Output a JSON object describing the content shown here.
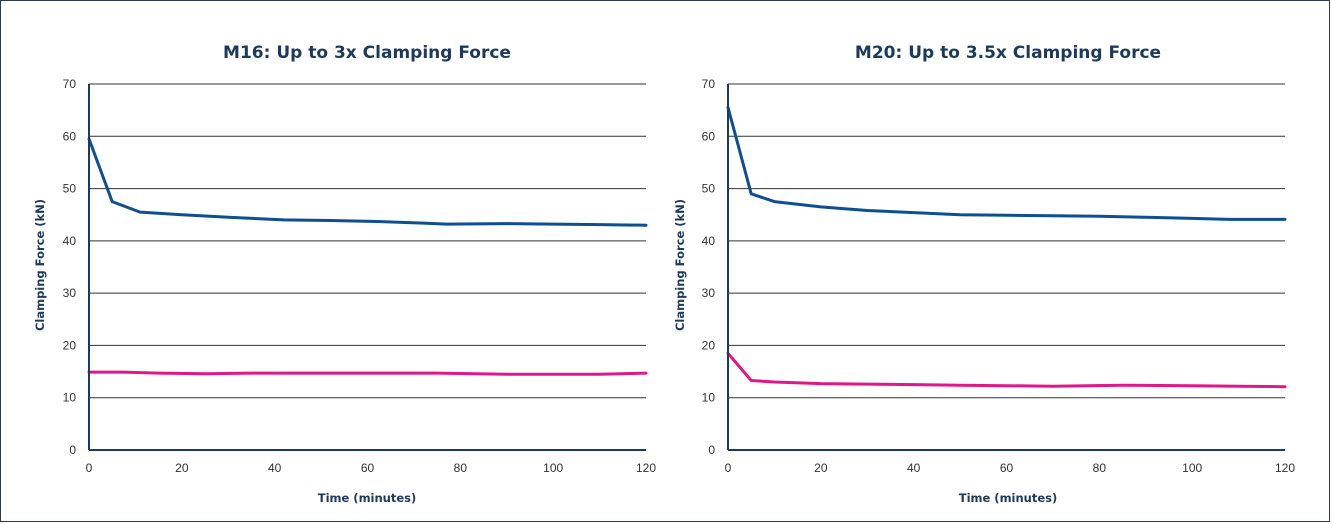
{
  "chart_data": [
    {
      "type": "line",
      "title": "M16: Up to 3x Clamping Force",
      "xlabel": "Time (minutes)",
      "ylabel": "Clamping Force (kN)",
      "xlim": [
        0,
        120
      ],
      "ylim": [
        0,
        70
      ],
      "xticks": [
        0,
        20,
        40,
        60,
        80,
        100,
        120
      ],
      "yticks": [
        0,
        10,
        20,
        30,
        40,
        50,
        60,
        70
      ],
      "grid": true,
      "series": [
        {
          "color": "#0d4f91",
          "x": [
            0,
            5,
            11,
            20,
            30,
            42,
            52,
            62,
            72,
            77,
            90,
            100,
            110,
            120
          ],
          "y": [
            59.5,
            47.5,
            45.5,
            45.0,
            44.5,
            44.0,
            43.9,
            43.7,
            43.4,
            43.2,
            43.3,
            43.2,
            43.1,
            43.0
          ]
        },
        {
          "color": "#e0168a",
          "x": [
            0,
            7,
            15,
            25,
            35,
            45,
            60,
            75,
            90,
            100,
            110,
            120
          ],
          "y": [
            14.9,
            14.9,
            14.7,
            14.6,
            14.7,
            14.7,
            14.7,
            14.7,
            14.5,
            14.5,
            14.5,
            14.7
          ]
        }
      ]
    },
    {
      "type": "line",
      "title": "M20: Up to 3.5x Clamping Force",
      "xlabel": "Time (minutes)",
      "ylabel": "Clamping Force (kN)",
      "xlim": [
        0,
        120
      ],
      "ylim": [
        0,
        70
      ],
      "xticks": [
        0,
        20,
        40,
        60,
        80,
        100,
        120
      ],
      "yticks": [
        0,
        10,
        20,
        30,
        40,
        50,
        60,
        70
      ],
      "grid": true,
      "series": [
        {
          "color": "#0d4f91",
          "x": [
            0,
            5,
            10,
            15,
            20,
            30,
            40,
            50,
            60,
            70,
            80,
            90,
            100,
            108,
            120
          ],
          "y": [
            65.5,
            49.0,
            47.5,
            47.0,
            46.5,
            45.8,
            45.4,
            45.0,
            44.9,
            44.8,
            44.7,
            44.5,
            44.3,
            44.1,
            44.1
          ]
        },
        {
          "color": "#e0168a",
          "x": [
            0,
            5,
            10,
            20,
            30,
            40,
            50,
            60,
            70,
            85,
            100,
            110,
            120
          ],
          "y": [
            18.5,
            13.3,
            13.0,
            12.7,
            12.6,
            12.5,
            12.4,
            12.3,
            12.2,
            12.4,
            12.3,
            12.2,
            12.1
          ]
        }
      ]
    }
  ]
}
